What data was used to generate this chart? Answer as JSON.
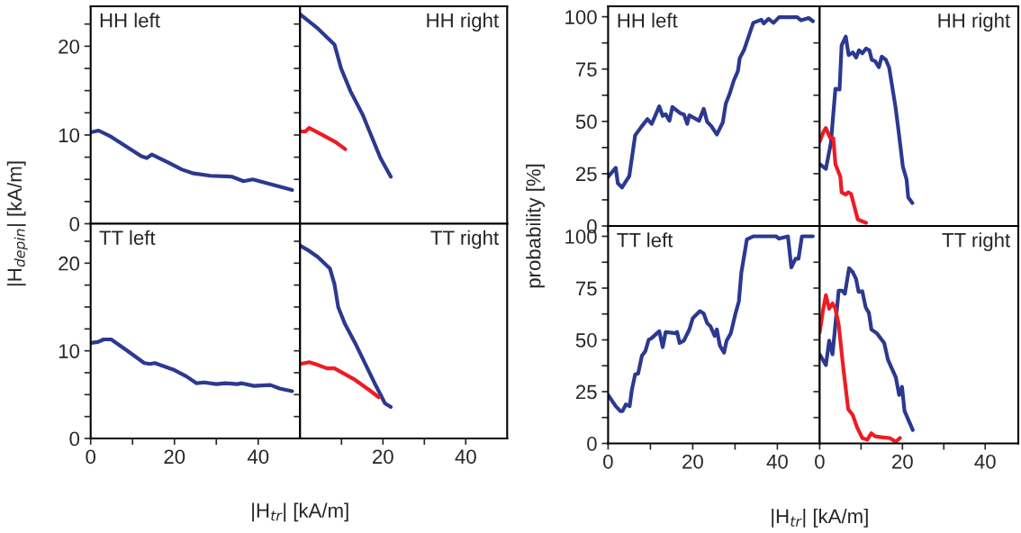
{
  "chart_data": [
    {
      "type": "line",
      "title": "HH left",
      "ylabel": "|H$_{depin}$| [kA/m]",
      "tick_labels": "y",
      "xlim": [
        0,
        50
      ],
      "ylim": [
        0,
        24.5
      ],
      "xticks": [
        {
          "value": 0,
          "label": null
        },
        {
          "value": 10,
          "label": null
        },
        {
          "value": 20,
          "label": null
        },
        {
          "value": 30,
          "label": null
        },
        {
          "value": 40,
          "label": null
        }
      ],
      "yticks": [
        0,
        {
          "value": 2.5,
          "label": null
        },
        {
          "value": 5,
          "label": null
        },
        {
          "value": 7.5,
          "label": null
        },
        10,
        {
          "value": 12.5,
          "label": null
        },
        {
          "value": 15,
          "label": null
        },
        {
          "value": 17.5,
          "label": null
        },
        20,
        {
          "value": 22.5,
          "label": null
        }
      ],
      "series": [
        {
          "color": "#2b3990",
          "x": [
            0,
            1.9,
            4.9,
            12.1,
            13.4,
            14.6,
            18.9,
            21.8,
            24.3,
            28.6,
            33.7,
            36.5,
            38.7,
            48.1
          ],
          "values": [
            10.3,
            10.5,
            9.8,
            7.6,
            7.4,
            7.8,
            6.8,
            6.1,
            5.7,
            5.4,
            5.3,
            4.8,
            5.0,
            3.8
          ]
        }
      ]
    },
    {
      "type": "line",
      "title": "HH right",
      "tick_labels": false,
      "xlim": [
        0,
        50
      ],
      "ylim": [
        0,
        24.5
      ],
      "xticks": [
        {
          "value": 10,
          "label": null
        },
        {
          "value": 20,
          "label": null
        },
        {
          "value": 30,
          "label": null
        },
        {
          "value": 40,
          "label": null
        }
      ],
      "yticks": [
        {
          "value": 2.5,
          "label": null
        },
        {
          "value": 5,
          "label": null
        },
        {
          "value": 7.5,
          "label": null
        },
        {
          "value": 10,
          "label": null
        },
        {
          "value": 12.5,
          "label": null
        },
        {
          "value": 15,
          "label": null
        },
        {
          "value": 17.5,
          "label": null
        },
        {
          "value": 20,
          "label": null
        },
        {
          "value": 22.5,
          "label": null
        }
      ],
      "series": [
        {
          "color": "#2b3990",
          "x": [
            0,
            4.3,
            8.3,
            9.9,
            12.2,
            15.1,
            19.4,
            21.9
          ],
          "values": [
            23.6,
            22.0,
            20.2,
            17.5,
            14.9,
            12.3,
            7.4,
            5.3
          ]
        },
        {
          "color": "#ed1c24",
          "x": [
            0,
            1.3,
            2.2,
            5.8,
            8.6,
            10.9
          ],
          "values": [
            10.4,
            10.4,
            10.8,
            9.9,
            9.2,
            8.4
          ]
        }
      ]
    },
    {
      "type": "line",
      "title": "HH left",
      "ylabel": "probability [%]",
      "tick_labels": "y",
      "xlim": [
        0,
        50
      ],
      "ylim": [
        0,
        105
      ],
      "xticks": [
        {
          "value": 0,
          "label": null
        },
        {
          "value": 10,
          "label": null
        },
        {
          "value": 20,
          "label": null
        },
        {
          "value": 30,
          "label": null
        },
        {
          "value": 40,
          "label": null
        }
      ],
      "yticks": [
        0,
        {
          "value": 12.5,
          "label": null
        },
        25,
        {
          "value": 37.5,
          "label": null
        },
        50,
        {
          "value": 62.5,
          "label": null
        },
        75,
        {
          "value": 87.5,
          "label": null
        },
        100
      ],
      "series": [
        {
          "color": "#2b3990",
          "x": [
            0,
            1.8,
            2.3,
            3.3,
            5.0,
            6.4,
            7.9,
            9.3,
            10.3,
            12.1,
            12.9,
            13.6,
            14.5,
            15.2,
            17.1,
            17.9,
            18.7,
            19.2,
            21.5,
            22.6,
            23.4,
            24.4,
            25.7,
            27.1,
            27.8,
            28.7,
            29.7,
            30.7,
            31.1,
            32.1,
            34.3,
            36.2,
            36.8,
            37.9,
            39.1,
            40.4,
            44.7,
            45.6,
            47.4,
            48.4
          ],
          "values": [
            23.5,
            27.8,
            20.4,
            18.4,
            23.8,
            43.4,
            47.5,
            51.1,
            48.8,
            57.2,
            52.6,
            53.4,
            50.3,
            56.9,
            53.8,
            53.4,
            48.8,
            52.9,
            50.3,
            56.0,
            49.8,
            47.7,
            43.7,
            49.5,
            58.4,
            63.0,
            69.5,
            74.2,
            80.2,
            84.0,
            97.1,
            98.6,
            96.8,
            99.0,
            97.1,
            99.8,
            99.8,
            98.3,
            99.4,
            97.9
          ]
        }
      ]
    },
    {
      "type": "line",
      "title": "HH right",
      "tick_labels": false,
      "xlim": [
        0,
        48
      ],
      "ylim": [
        0,
        105
      ],
      "xticks": [
        {
          "value": 10,
          "label": null
        },
        {
          "value": 20,
          "label": null
        },
        {
          "value": 30,
          "label": null
        },
        {
          "value": 40,
          "label": null
        }
      ],
      "yticks": [
        {
          "value": 12.5,
          "label": null
        },
        {
          "value": 25,
          "label": null
        },
        {
          "value": 37.5,
          "label": null
        },
        {
          "value": 50,
          "label": null
        },
        {
          "value": 62.5,
          "label": null
        },
        {
          "value": 75,
          "label": null
        },
        {
          "value": 87.5,
          "label": null
        }
      ],
      "series": [
        {
          "color": "#2b3990",
          "x": [
            0,
            1.5,
            2.7,
            3.8,
            4.8,
            5.3,
            6.3,
            7.0,
            8.0,
            8.8,
            9.5,
            10.3,
            11.2,
            12.0,
            12.6,
            13.4,
            14.3,
            15.0,
            16.0,
            16.8,
            18.3,
            19.1,
            20.1,
            21.0,
            21.4,
            22.4
          ],
          "values": [
            29.6,
            27.3,
            39.6,
            65.6,
            65.2,
            86.3,
            90.5,
            81.7,
            83.0,
            80.5,
            84.0,
            82.5,
            84.8,
            84.0,
            79.4,
            78.8,
            75.9,
            81.0,
            79.4,
            75.6,
            57.2,
            44.9,
            28.4,
            22.2,
            13.7,
            11.0
          ]
        },
        {
          "color": "#ed1c24",
          "x": [
            0,
            0.9,
            1.5,
            2.5,
            3.3,
            3.8,
            5.0,
            5.3,
            6.3,
            6.9,
            7.6,
            9.2,
            11.2
          ],
          "values": [
            40.3,
            45.0,
            46.8,
            42.2,
            41.9,
            29.6,
            23.5,
            16.1,
            15.0,
            16.1,
            15.3,
            3.1,
            1.5
          ]
        }
      ]
    },
    {
      "type": "line",
      "title": "TT left",
      "xlabel": "|H$_{tr}$| [kA/m]",
      "xlim": [
        0,
        50
      ],
      "ylim": [
        0,
        24.5
      ],
      "xticks": [
        0,
        {
          "value": 10,
          "label": null
        },
        20,
        {
          "value": 30,
          "label": null
        },
        40
      ],
      "yticks": [
        0,
        {
          "value": 2.5,
          "label": null
        },
        {
          "value": 5,
          "label": null
        },
        {
          "value": 7.5,
          "label": null
        },
        10,
        {
          "value": 12.5,
          "label": null
        },
        {
          "value": 15,
          "label": null
        },
        {
          "value": 17.5,
          "label": null
        },
        20,
        {
          "value": 22.5,
          "label": null
        }
      ],
      "series": [
        {
          "color": "#2b3990",
          "x": [
            0,
            1.7,
            3.1,
            4.9,
            8.5,
            12.8,
            14.2,
            15.3,
            20.0,
            22.8,
            25.3,
            27.1,
            30.0,
            32.2,
            35.0,
            36.1,
            39.0,
            42.9,
            45.1,
            48.1
          ],
          "values": [
            10.9,
            11.0,
            11.3,
            11.3,
            10.1,
            8.6,
            8.5,
            8.6,
            7.8,
            7.1,
            6.3,
            6.4,
            6.2,
            6.3,
            6.2,
            6.3,
            6.0,
            6.1,
            5.7,
            5.4
          ]
        }
      ]
    },
    {
      "type": "line",
      "title": "TT right",
      "tick_labels": "x",
      "xlim": [
        0,
        50
      ],
      "ylim": [
        0,
        24.5
      ],
      "xticks": [
        {
          "value": 10,
          "label": null
        },
        20,
        {
          "value": 30,
          "label": null
        },
        40
      ],
      "yticks": [
        {
          "value": 2.5,
          "label": null
        },
        {
          "value": 5,
          "label": null
        },
        {
          "value": 7.5,
          "label": null
        },
        {
          "value": 10,
          "label": null
        },
        {
          "value": 12.5,
          "label": null
        },
        {
          "value": 15,
          "label": null
        },
        {
          "value": 17.5,
          "label": null
        },
        {
          "value": 20,
          "label": null
        },
        {
          "value": 22.5,
          "label": null
        }
      ],
      "series": [
        {
          "color": "#2b3990",
          "x": [
            0,
            2.2,
            4.3,
            7.2,
            8.3,
            9.2,
            10.8,
            13.6,
            17.9,
            20.5,
            21.9
          ],
          "values": [
            22.0,
            21.4,
            20.7,
            19.4,
            17.6,
            15.0,
            13.1,
            10.6,
            6.4,
            4.0,
            3.6
          ]
        },
        {
          "color": "#ed1c24",
          "x": [
            0,
            2.2,
            3.6,
            6.5,
            8.3,
            12.9,
            16.5,
            19.0
          ],
          "values": [
            8.5,
            8.7,
            8.5,
            8.0,
            8.0,
            6.8,
            5.6,
            4.7
          ]
        }
      ]
    },
    {
      "type": "line",
      "title": "TT left",
      "xlabel": "|H$_{tr}$| [kA/m]",
      "xlim": [
        0,
        50
      ],
      "ylim": [
        0,
        105
      ],
      "xticks": [
        0,
        {
          "value": 10,
          "label": null
        },
        20,
        {
          "value": 30,
          "label": null
        },
        40
      ],
      "yticks": [
        0,
        {
          "value": 12.5,
          "label": null
        },
        25,
        {
          "value": 37.5,
          "label": null
        },
        50,
        {
          "value": 62.5,
          "label": null
        },
        75,
        {
          "value": 87.5,
          "label": null
        },
        100
      ],
      "series": [
        {
          "color": "#2b3990",
          "x": [
            0,
            1.8,
            2.9,
            3.4,
            4.2,
            5.1,
            5.6,
            6.4,
            7.1,
            8.0,
            8.8,
            9.6,
            10.2,
            12.1,
            12.9,
            13.6,
            15.9,
            16.3,
            16.9,
            17.9,
            19.2,
            20.0,
            21.7,
            22.6,
            23.4,
            24.2,
            25.2,
            25.7,
            26.4,
            27.4,
            28.0,
            29.0,
            30.1,
            30.9,
            31.5,
            32.8,
            34.3,
            36.2,
            39.7,
            40.4,
            42.5,
            43.3,
            44.3,
            45.0,
            45.8,
            48.4
          ],
          "values": [
            23.4,
            18.0,
            15.6,
            15.6,
            18.8,
            18.0,
            25.7,
            33.4,
            33.7,
            42.4,
            44.5,
            50.1,
            50.7,
            54.2,
            46.5,
            53.8,
            53.2,
            53.8,
            48.5,
            49.6,
            55.0,
            60.4,
            63.9,
            62.7,
            58.1,
            56.5,
            51.9,
            55.0,
            47.3,
            43.8,
            49.6,
            53.2,
            62.7,
            68.6,
            82.7,
            98.5,
            100,
            100,
            100,
            98.9,
            100,
            85.0,
            89.2,
            89.2,
            100,
            100
          ]
        }
      ]
    },
    {
      "type": "line",
      "title": "TT right",
      "tick_labels": "x",
      "xlim": [
        0,
        48
      ],
      "ylim": [
        0,
        105
      ],
      "xticks": [
        0,
        {
          "value": 10,
          "label": null
        },
        20,
        {
          "value": 30,
          "label": null
        },
        40
      ],
      "yticks": [
        {
          "value": 12.5,
          "label": null
        },
        {
          "value": 25,
          "label": null
        },
        {
          "value": 37.5,
          "label": null
        },
        {
          "value": 50,
          "label": null
        },
        {
          "value": 62.5,
          "label": null
        },
        {
          "value": 75,
          "label": null
        },
        {
          "value": 87.5,
          "label": null
        }
      ],
      "series": [
        {
          "color": "#2b3990",
          "x": [
            0,
            1.5,
            2.3,
            3.1,
            4.6,
            5.4,
            6.1,
            7.1,
            8.0,
            8.8,
            9.4,
            10.3,
            11.1,
            11.9,
            12.5,
            13.8,
            15.6,
            16.5,
            18.4,
            19.2,
            19.9,
            20.5,
            22.5
          ],
          "values": [
            43.0,
            37.8,
            49.6,
            43.0,
            73.8,
            73.8,
            72.3,
            84.6,
            82.7,
            79.4,
            73.2,
            73.5,
            65.8,
            63.0,
            55.0,
            53.2,
            48.5,
            40.4,
            31.9,
            23.4,
            27.3,
            15.7,
            6.5
          ]
        },
        {
          "color": "#ed1c24",
          "x": [
            0,
            0.8,
            1.5,
            2.3,
            3.1,
            3.8,
            4.6,
            5.7,
            6.9,
            8.0,
            9.0,
            10.3,
            11.5,
            12.5,
            13.4,
            15.3,
            16.9,
            18.4,
            19.4
          ],
          "values": [
            53.5,
            64.3,
            71.6,
            65.0,
            67.6,
            65.0,
            57.3,
            36.5,
            16.5,
            13.7,
            8.0,
            2.6,
            1.8,
            4.9,
            3.4,
            2.9,
            2.6,
            0.8,
            2.6
          ]
        }
      ]
    }
  ]
}
